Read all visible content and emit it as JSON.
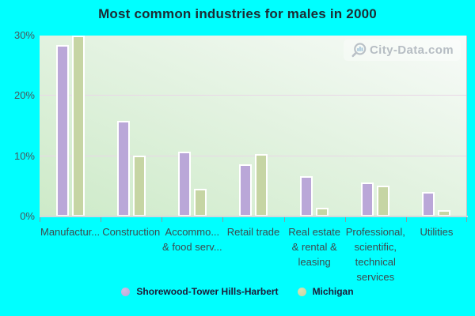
{
  "title": "Most common industries for males in 2000",
  "watermark": {
    "text": "City-Data.com"
  },
  "y_axis": {
    "tick_labels": [
      "30%",
      "20%",
      "10%",
      "0%"
    ]
  },
  "legend": {
    "items": [
      {
        "label": "Shorewood-Tower Hills-Harbert",
        "color": "#baa7d8"
      },
      {
        "label": "Michigan",
        "color": "#c6d5a4"
      }
    ]
  },
  "chart_data": {
    "type": "bar",
    "title": "Most common industries for males in 2000",
    "categories": [
      "Manufactur...",
      "Construction",
      "Accommo...\n& food serv...",
      "Retail trade",
      "Real estate\n& rental &\nleasing",
      "Professional,\nscientific,\ntechnical\nservices",
      "Utilities"
    ],
    "series": [
      {
        "name": "Shorewood-Tower Hills-Harbert",
        "color": "#baa7d8",
        "values": [
          28.4,
          15.9,
          10.7,
          8.7,
          6.7,
          5.6,
          4.0
        ]
      },
      {
        "name": "Michigan",
        "color": "#c6d5a4",
        "values": [
          30.0,
          10.1,
          4.6,
          10.4,
          1.4,
          5.1,
          1.1
        ]
      }
    ],
    "xlabel": "",
    "ylabel": "",
    "ylim": [
      0,
      30
    ],
    "ytick_values": [
      0,
      10,
      20,
      30
    ],
    "grid": "horizontal-at-10-and-20",
    "legend_position": "bottom-center"
  },
  "colors": {
    "page_background": "#00ffff",
    "plot_gradient_top_right": "#f8fbf9",
    "plot_gradient_bottom_left": "#cdeac8",
    "bar_shorewood": "#baa7d8",
    "bar_michigan": "#c6d5a4",
    "bar_border": "#ffffff",
    "gridline": "#e9d7e7",
    "axis_line": "#d2d8da",
    "tick": "#8b9aa0",
    "title_text": "#1d2b33",
    "axis_text": "#3c4a4e",
    "legend_text": "#1c1c38",
    "watermark_text": "#b6bdc3"
  }
}
